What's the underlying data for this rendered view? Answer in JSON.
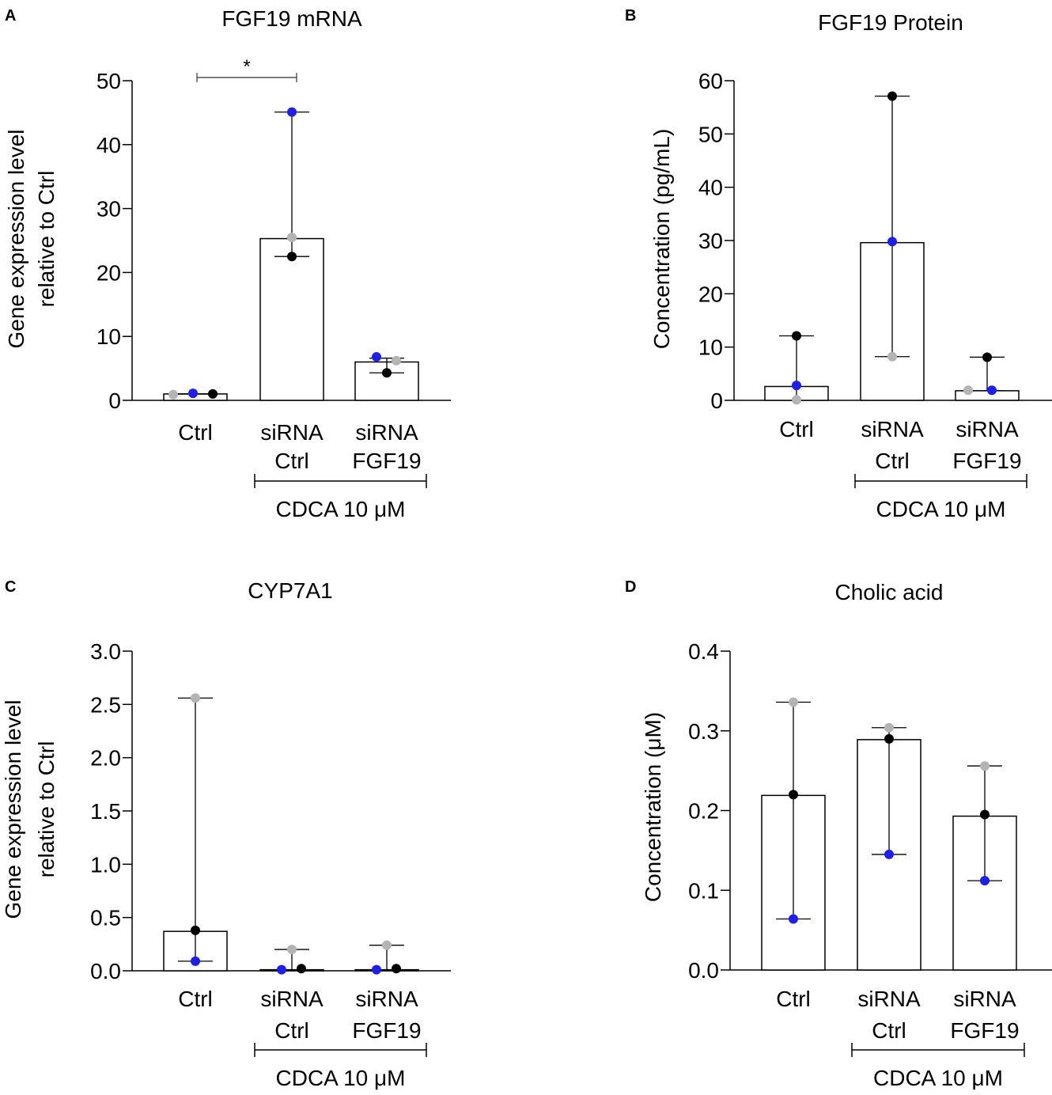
{
  "figure": {
    "point_colors": {
      "blue": "#1f1fe6",
      "gray": "#b4b4b4",
      "black": "#000000"
    },
    "bar_fill": "#ffffff",
    "axis_color": "#000000"
  },
  "chart_data": [
    {
      "panel": "A",
      "type": "bar",
      "title": "FGF19 mRNA",
      "ylabel": [
        "Gene expression level",
        "relative to Ctrl"
      ],
      "ylim": [
        0,
        50
      ],
      "yticks": [
        0,
        10,
        20,
        30,
        40,
        50
      ],
      "ytick_labels": [
        "0",
        "10",
        "20",
        "30",
        "40",
        "50"
      ],
      "categories": [
        [
          "Ctrl"
        ],
        [
          "siRNA",
          "Ctrl"
        ],
        [
          "siRNA",
          "FGF19"
        ]
      ],
      "values": [
        1.0,
        25.3,
        6.0
      ],
      "error_low": [
        1.0,
        22.5,
        4.3
      ],
      "error_high": [
        1.0,
        45.1,
        6.6
      ],
      "points": [
        [
          {
            "v": 0.9,
            "c": "gray",
            "dx": -28
          },
          {
            "v": 1.1,
            "c": "blue",
            "dx": -3
          },
          {
            "v": 1.0,
            "c": "black",
            "dx": 22
          }
        ],
        [
          {
            "v": 45.1,
            "c": "blue",
            "dx": 0
          },
          {
            "v": 25.5,
            "c": "gray",
            "dx": 0
          },
          {
            "v": 22.5,
            "c": "black",
            "dx": 0
          }
        ],
        [
          {
            "v": 6.8,
            "c": "blue",
            "dx": -13
          },
          {
            "v": 6.2,
            "c": "gray",
            "dx": 12
          },
          {
            "v": 4.3,
            "c": "black",
            "dx": 0
          }
        ]
      ],
      "group_label": "CDCA 10 μM",
      "group_span": [
        1,
        2
      ],
      "significance": [
        {
          "from": 0,
          "to": 1,
          "y": 50.5,
          "label": "*"
        }
      ]
    },
    {
      "panel": "B",
      "type": "bar",
      "title": "FGF19 Protein",
      "ylabel": [
        "Concentration (pg/mL)"
      ],
      "ylim": [
        0,
        60
      ],
      "yticks": [
        0,
        10,
        20,
        30,
        40,
        50,
        60
      ],
      "ytick_labels": [
        "0",
        "10",
        "20",
        "30",
        "40",
        "50",
        "60"
      ],
      "categories": [
        [
          "Ctrl"
        ],
        [
          "siRNA",
          "Ctrl"
        ],
        [
          "siRNA",
          "FGF19"
        ]
      ],
      "values": [
        2.6,
        29.6,
        1.8
      ],
      "error_low": [
        0,
        8.2,
        1.8
      ],
      "error_high": [
        12.1,
        57.1,
        8.1
      ],
      "points": [
        [
          {
            "v": 12.1,
            "c": "black",
            "dx": 0
          },
          {
            "v": 2.8,
            "c": "blue",
            "dx": 0
          },
          {
            "v": 0.1,
            "c": "gray",
            "dx": 0
          }
        ],
        [
          {
            "v": 57.1,
            "c": "black",
            "dx": 0
          },
          {
            "v": 29.8,
            "c": "blue",
            "dx": 0
          },
          {
            "v": 8.2,
            "c": "gray",
            "dx": 0
          }
        ],
        [
          {
            "v": 8.1,
            "c": "black",
            "dx": 0
          },
          {
            "v": 1.9,
            "c": "gray",
            "dx": -24
          },
          {
            "v": 1.9,
            "c": "blue",
            "dx": 6
          }
        ]
      ],
      "group_label": "CDCA 10 μM",
      "group_span": [
        1,
        2
      ],
      "significance": []
    },
    {
      "panel": "C",
      "type": "bar",
      "title": "CYP7A1",
      "ylabel": [
        "Gene expression level",
        "relative to Ctrl"
      ],
      "ylim": [
        0,
        3.0
      ],
      "yticks": [
        0,
        0.5,
        1.0,
        1.5,
        2.0,
        2.5,
        3.0
      ],
      "ytick_labels": [
        "0.0",
        "0.5",
        "1.0",
        "1.5",
        "2.0",
        "2.5",
        "3.0"
      ],
      "categories": [
        [
          "Ctrl"
        ],
        [
          "siRNA",
          "Ctrl"
        ],
        [
          "siRNA",
          "FGF19"
        ]
      ],
      "values": [
        0.37,
        0.01,
        0.01
      ],
      "error_low": [
        0.09,
        0.01,
        0.01
      ],
      "error_high": [
        2.56,
        0.2,
        0.24
      ],
      "points": [
        [
          {
            "v": 2.56,
            "c": "gray",
            "dx": 0
          },
          {
            "v": 0.38,
            "c": "black",
            "dx": 0
          },
          {
            "v": 0.09,
            "c": "blue",
            "dx": 0
          }
        ],
        [
          {
            "v": 0.2,
            "c": "gray",
            "dx": 0
          },
          {
            "v": 0.01,
            "c": "blue",
            "dx": -13
          },
          {
            "v": 0.02,
            "c": "black",
            "dx": 12
          }
        ],
        [
          {
            "v": 0.24,
            "c": "gray",
            "dx": 0
          },
          {
            "v": 0.01,
            "c": "blue",
            "dx": -13
          },
          {
            "v": 0.02,
            "c": "black",
            "dx": 12
          }
        ]
      ],
      "group_label": "CDCA 10 μM",
      "group_span": [
        1,
        2
      ],
      "significance": []
    },
    {
      "panel": "D",
      "type": "bar",
      "title": "Cholic acid",
      "ylabel": [
        "Concentration (μM)"
      ],
      "ylim": [
        0,
        0.4
      ],
      "yticks": [
        0,
        0.1,
        0.2,
        0.3,
        0.4
      ],
      "ytick_labels": [
        "0.0",
        "0.1",
        "0.2",
        "0.3",
        "0.4"
      ],
      "categories": [
        [
          "Ctrl"
        ],
        [
          "siRNA",
          "Ctrl"
        ],
        [
          "siRNA",
          "FGF19"
        ]
      ],
      "values": [
        0.219,
        0.289,
        0.193
      ],
      "error_low": [
        0.064,
        0.145,
        0.112
      ],
      "error_high": [
        0.336,
        0.304,
        0.256
      ],
      "points": [
        [
          {
            "v": 0.336,
            "c": "gray",
            "dx": 0
          },
          {
            "v": 0.22,
            "c": "black",
            "dx": 0
          },
          {
            "v": 0.064,
            "c": "blue",
            "dx": 0
          }
        ],
        [
          {
            "v": 0.304,
            "c": "gray",
            "dx": 0
          },
          {
            "v": 0.29,
            "c": "black",
            "dx": 0
          },
          {
            "v": 0.145,
            "c": "blue",
            "dx": 0
          }
        ],
        [
          {
            "v": 0.256,
            "c": "gray",
            "dx": 0
          },
          {
            "v": 0.195,
            "c": "black",
            "dx": 0
          },
          {
            "v": 0.112,
            "c": "blue",
            "dx": 0
          }
        ]
      ],
      "group_label": "CDCA 10 μM",
      "group_span": [
        1,
        2
      ],
      "significance": []
    }
  ]
}
